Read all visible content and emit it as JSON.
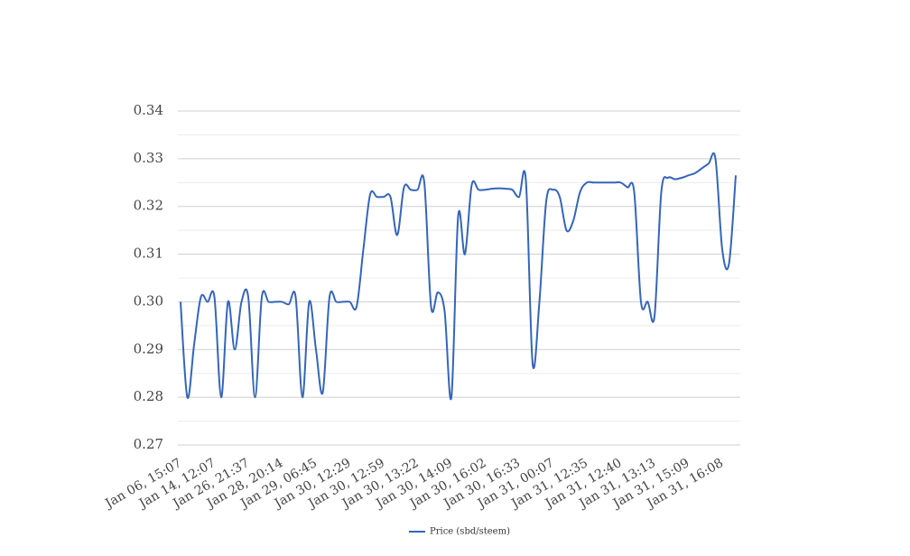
{
  "chart_data": {
    "type": "line",
    "categories": [
      "Jan 06, 15:07",
      null,
      null,
      null,
      null,
      "Jan 14, 12:07",
      null,
      null,
      null,
      null,
      "Jan 26, 21:37",
      null,
      null,
      null,
      null,
      "Jan 28, 20:14",
      null,
      null,
      null,
      null,
      "Jan 29, 06:45",
      null,
      null,
      null,
      null,
      "Jan 30, 12:29",
      null,
      null,
      null,
      null,
      "Jan 30, 12:59",
      null,
      null,
      null,
      null,
      "Jan 30, 13:22",
      null,
      null,
      null,
      null,
      "Jan 30, 14:09",
      null,
      null,
      null,
      null,
      "Jan 30, 16:02",
      null,
      null,
      null,
      null,
      "Jan 30, 16:33",
      null,
      null,
      null,
      null,
      "Jan 31, 00:07",
      null,
      null,
      null,
      null,
      "Jan 31, 12:35",
      null,
      null,
      null,
      null,
      "Jan 31, 12:40",
      null,
      null,
      null,
      null,
      "Jan 31, 13:13",
      null,
      null,
      null,
      null,
      "Jan 31, 15:09",
      null,
      null,
      null,
      null,
      "Jan 31, 16:08",
      null,
      null
    ],
    "series": [
      {
        "name": "Price (sbd/steem)",
        "color": "#3565b8",
        "values": [
          0.3,
          0.28,
          0.291,
          0.301,
          0.3,
          0.301,
          0.28,
          0.3,
          0.29,
          0.3,
          0.301,
          0.28,
          0.301,
          0.3,
          0.3,
          0.3,
          0.2995,
          0.301,
          0.28,
          0.3,
          0.29,
          0.281,
          0.301,
          0.3,
          0.3,
          0.3,
          0.299,
          0.311,
          0.3225,
          0.322,
          0.322,
          0.322,
          0.314,
          0.324,
          0.3235,
          0.3235,
          0.325,
          0.299,
          0.302,
          0.298,
          0.28,
          0.318,
          0.31,
          0.3245,
          0.3235,
          0.3235,
          0.3237,
          0.3238,
          0.3237,
          0.3235,
          0.322,
          0.3255,
          0.287,
          0.3,
          0.321,
          0.3235,
          0.322,
          0.315,
          0.317,
          0.323,
          0.325,
          0.325,
          0.325,
          0.325,
          0.325,
          0.325,
          0.324,
          0.323,
          0.3,
          0.3,
          0.297,
          0.323,
          0.326,
          0.3257,
          0.326,
          0.3265,
          0.327,
          0.328,
          0.329,
          0.33,
          0.311,
          0.308,
          0.3265
        ]
      }
    ],
    "ylim": [
      0.27,
      0.34
    ],
    "yticks": [
      0.27,
      0.28,
      0.29,
      {
        "value": 0.3,
        "label": "0.30"
      },
      0.31,
      0.32,
      0.33,
      0.34
    ],
    "grid": true,
    "minor_grid": true,
    "smooth": true,
    "legend": "bottom"
  }
}
